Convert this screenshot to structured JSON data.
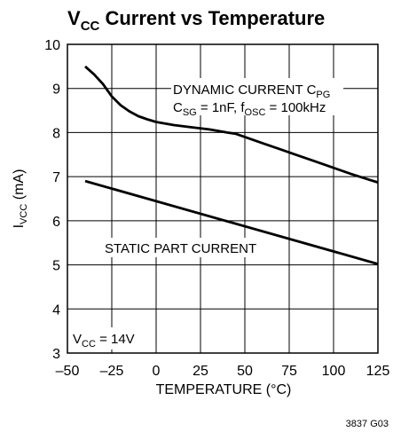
{
  "chart_data": {
    "type": "line",
    "title": {
      "main": "V",
      "sub": "CC",
      "rest": " Current vs Temperature"
    },
    "xlabel": "TEMPERATURE (°C)",
    "ylabel": {
      "main": "I",
      "sub": "VCC",
      "rest": " (mA)"
    },
    "xlim": [
      -50,
      125
    ],
    "ylim": [
      3,
      10
    ],
    "xticks": [
      -50,
      -25,
      0,
      25,
      50,
      75,
      100,
      125
    ],
    "xtick_labels": [
      "–50",
      "–25",
      "0",
      "25",
      "50",
      "75",
      "100",
      "125"
    ],
    "yticks": [
      3,
      4,
      5,
      6,
      7,
      8,
      9,
      10
    ],
    "grid": true,
    "series": [
      {
        "name": "DYNAMIC CURRENT CPG",
        "x": [
          -40,
          -35,
          -30,
          -25,
          -20,
          -15,
          -10,
          -5,
          0,
          10,
          20,
          30,
          40,
          45,
          50,
          60,
          70,
          80,
          90,
          100,
          110,
          120,
          125
        ],
        "y": [
          9.5,
          9.32,
          9.1,
          8.82,
          8.62,
          8.48,
          8.37,
          8.3,
          8.24,
          8.17,
          8.12,
          8.07,
          8.0,
          7.97,
          7.9,
          7.76,
          7.62,
          7.48,
          7.34,
          7.2,
          7.06,
          6.93,
          6.87
        ]
      },
      {
        "name": "STATIC PART CURRENT",
        "x": [
          -40,
          125
        ],
        "y": [
          6.9,
          5.02
        ]
      }
    ],
    "annotations": {
      "dynamic_line1": {
        "main": "DYNAMIC CURRENT C",
        "sub": "PG"
      },
      "dynamic_line2": {
        "a": "C",
        "a_sub": "SG",
        "b": " = 1nF, f",
        "b_sub": "OSC",
        "c": " = 100kHz"
      },
      "static": "STATIC PART CURRENT",
      "vcc": {
        "main": "V",
        "sub": "CC",
        "rest": " = 14V"
      }
    },
    "figure_id": "3837 G03"
  }
}
